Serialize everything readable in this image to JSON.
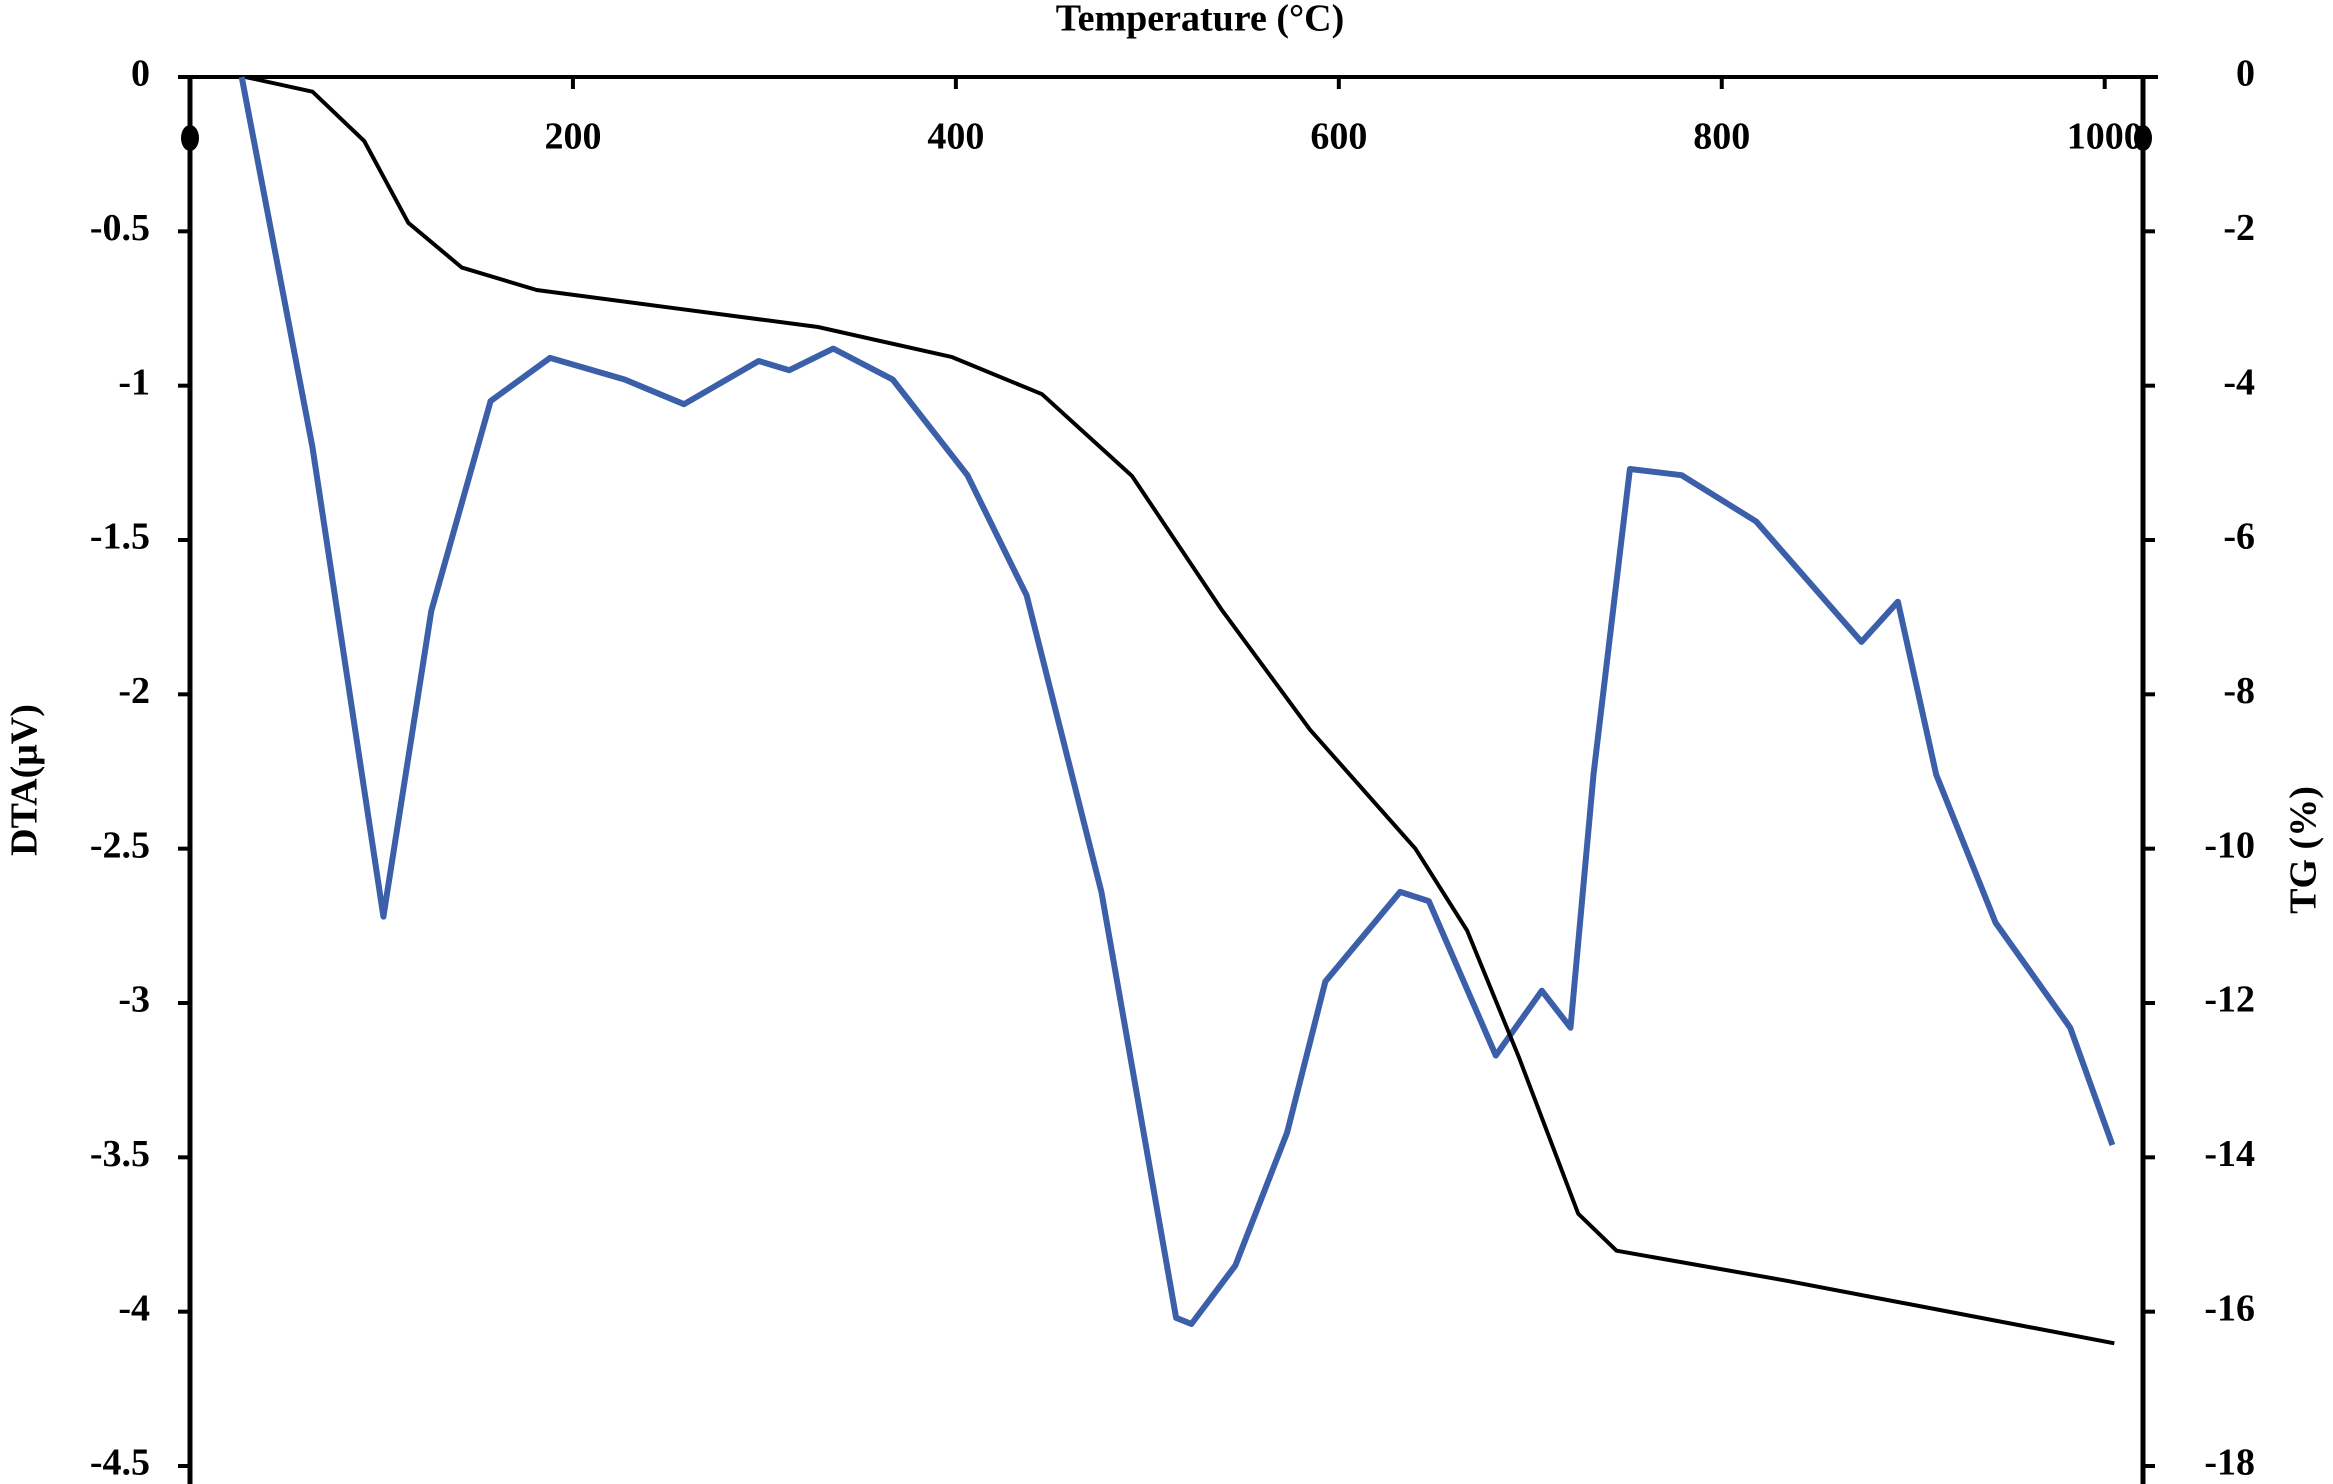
{
  "chart_data": {
    "type": "line",
    "title": "Temperature (°C)",
    "y_label": "DTA(μV)",
    "y2_label": "TG (%)",
    "xlim": [
      0,
      1020
    ],
    "xticks": [
      200,
      400,
      600,
      800,
      1000
    ],
    "ylim": [
      -4.5,
      0
    ],
    "yticks": [
      0,
      -0.5,
      -1,
      -1.5,
      -2,
      -2.5,
      -3,
      -3.5,
      -4,
      -4.5
    ],
    "y2lim": [
      -18,
      0
    ],
    "y2ticks": [
      0,
      -2,
      -4,
      -6,
      -8,
      -10,
      -12,
      -14,
      -16,
      -18
    ],
    "series": [
      {
        "color": "#3b5fa8",
        "axis": "y",
        "x": [
          27,
          64,
          101,
          126,
          157,
          188,
          227,
          258,
          297,
          313,
          336,
          367,
          406,
          437,
          476,
          515,
          523,
          546,
          573,
          593,
          632,
          647,
          682,
          706,
          721,
          733,
          752,
          779,
          818,
          873,
          892,
          912,
          943,
          982,
          1004
        ],
        "values": [
          0,
          -1.2,
          -2.72,
          -1.73,
          -1.05,
          -0.91,
          -0.98,
          -1.06,
          -0.92,
          -0.95,
          -0.88,
          -0.98,
          -1.29,
          -1.68,
          -2.64,
          -4.02,
          -4.04,
          -3.85,
          -3.42,
          -2.93,
          -2.64,
          -2.67,
          -3.17,
          -2.96,
          -3.08,
          -2.26,
          -1.27,
          -1.29,
          -1.44,
          -1.83,
          -1.7,
          -2.26,
          -2.74,
          -3.08,
          -3.46
        ]
      },
      {
        "color": "#000000",
        "axis": "y2",
        "x": [
          29,
          64,
          91,
          114,
          142,
          181,
          251,
          328,
          398,
          445,
          492,
          539,
          585,
          640,
          667,
          694,
          725,
          745,
          834,
          1005
        ],
        "values": [
          0,
          -0.19,
          -0.83,
          -1.89,
          -2.47,
          -2.76,
          -2.99,
          -3.24,
          -3.63,
          -4.11,
          -5.17,
          -6.91,
          -8.46,
          -10,
          -11.06,
          -12.7,
          -14.73,
          -15.21,
          -15.6,
          -16.41
        ]
      }
    ]
  }
}
